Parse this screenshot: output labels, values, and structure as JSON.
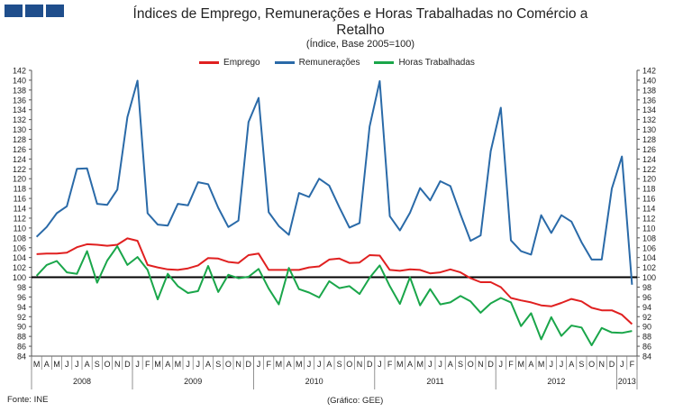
{
  "header": {
    "title": "Índices de Emprego, Remunerações e Horas Trabalhadas no Comércio a Retalho",
    "subtitle": "(Índice, Base 2005=100)"
  },
  "footer": {
    "source": "Fonte: INE",
    "credit": "(Gráfico: GEE)"
  },
  "colors": {
    "logo": "#1f4e8c",
    "emprego": "#e02020",
    "remuneracoes": "#2a6aa8",
    "horas": "#1aa64a",
    "baseline": "#000000"
  },
  "chart_data": {
    "type": "line",
    "title": "Índices de Emprego, Remunerações e Horas Trabalhadas no Comércio a Retalho",
    "subtitle": "(Índice, Base 2005=100)",
    "ylim": [
      84,
      142
    ],
    "ytick_step": 2,
    "y_axes": "left-and-right",
    "reference_line": 100,
    "legend_position": "top-center",
    "grid": false,
    "categories": [
      "M",
      "A",
      "M",
      "J",
      "J",
      "A",
      "S",
      "O",
      "N",
      "D",
      "J",
      "F",
      "M",
      "A",
      "M",
      "J",
      "J",
      "A",
      "S",
      "O",
      "N",
      "D",
      "J",
      "F",
      "M",
      "A",
      "M",
      "J",
      "J",
      "A",
      "S",
      "O",
      "N",
      "D",
      "J",
      "F",
      "M",
      "A",
      "M",
      "J",
      "J",
      "A",
      "S",
      "O",
      "N",
      "D",
      "J",
      "F",
      "M",
      "A",
      "M",
      "J",
      "J",
      "A",
      "S",
      "O",
      "N",
      "D",
      "J",
      "F"
    ],
    "year_groups": [
      {
        "label": "2008",
        "count": 10
      },
      {
        "label": "2009",
        "count": 12
      },
      {
        "label": "2010",
        "count": 12
      },
      {
        "label": "2011",
        "count": 12
      },
      {
        "label": "2012",
        "count": 12
      },
      {
        "label": "2013",
        "count": 2
      }
    ],
    "series": [
      {
        "name": "Emprego",
        "color": "#e02020",
        "values": [
          104.7,
          104.8,
          104.8,
          105.0,
          106.1,
          106.7,
          106.6,
          106.4,
          106.6,
          107.9,
          107.4,
          102.5,
          102.0,
          101.6,
          101.5,
          101.8,
          102.4,
          103.9,
          103.8,
          103.1,
          102.9,
          104.5,
          104.8,
          101.5,
          101.5,
          101.5,
          101.5,
          102.0,
          102.2,
          103.6,
          103.8,
          102.9,
          103.0,
          104.5,
          104.4,
          101.5,
          101.3,
          101.6,
          101.5,
          100.8,
          101.0,
          101.6,
          101.0,
          99.8,
          99.0,
          99.0,
          98.0,
          95.8,
          95.3,
          94.9,
          94.3,
          94.1,
          94.8,
          95.6,
          95.1,
          93.8,
          93.3,
          93.3,
          92.4,
          90.5
        ]
      },
      {
        "name": "Remunerações",
        "color": "#2a6aa8",
        "values": [
          108.2,
          110.2,
          113.0,
          114.4,
          122.0,
          122.1,
          114.9,
          114.7,
          117.8,
          132.5,
          139.9,
          113.0,
          110.7,
          110.5,
          114.9,
          114.6,
          119.3,
          118.9,
          114.1,
          110.2,
          111.5,
          131.5,
          136.4,
          113.2,
          110.4,
          108.6,
          117.1,
          116.3,
          120.0,
          118.6,
          114.2,
          110.1,
          111.0,
          130.6,
          139.8,
          112.4,
          109.5,
          113.1,
          118.1,
          115.6,
          119.5,
          118.5,
          112.8,
          107.4,
          108.5,
          125.6,
          134.4,
          107.5,
          105.3,
          104.6,
          112.6,
          109.0,
          112.6,
          111.3,
          107.1,
          103.6,
          103.6,
          118.0,
          124.5,
          98.5
        ]
      },
      {
        "name": "Horas Trabalhadas",
        "color": "#1aa64a",
        "values": [
          100.3,
          102.5,
          103.3,
          101.0,
          100.7,
          105.3,
          98.9,
          103.4,
          106.3,
          102.5,
          104.1,
          101.5,
          95.5,
          100.7,
          98.2,
          96.8,
          97.2,
          102.3,
          97.0,
          100.5,
          99.8,
          100.1,
          101.7,
          97.7,
          94.5,
          101.9,
          97.6,
          96.9,
          95.9,
          99.2,
          97.8,
          98.2,
          96.6,
          99.9,
          102.4,
          98.2,
          94.6,
          100.0,
          94.3,
          97.6,
          94.5,
          94.9,
          96.2,
          95.1,
          92.8,
          94.7,
          95.8,
          94.9,
          90.1,
          92.7,
          87.4,
          91.9,
          88.1,
          90.2,
          89.8,
          86.2,
          89.7,
          88.8,
          88.7,
          89.1
        ]
      }
    ]
  }
}
